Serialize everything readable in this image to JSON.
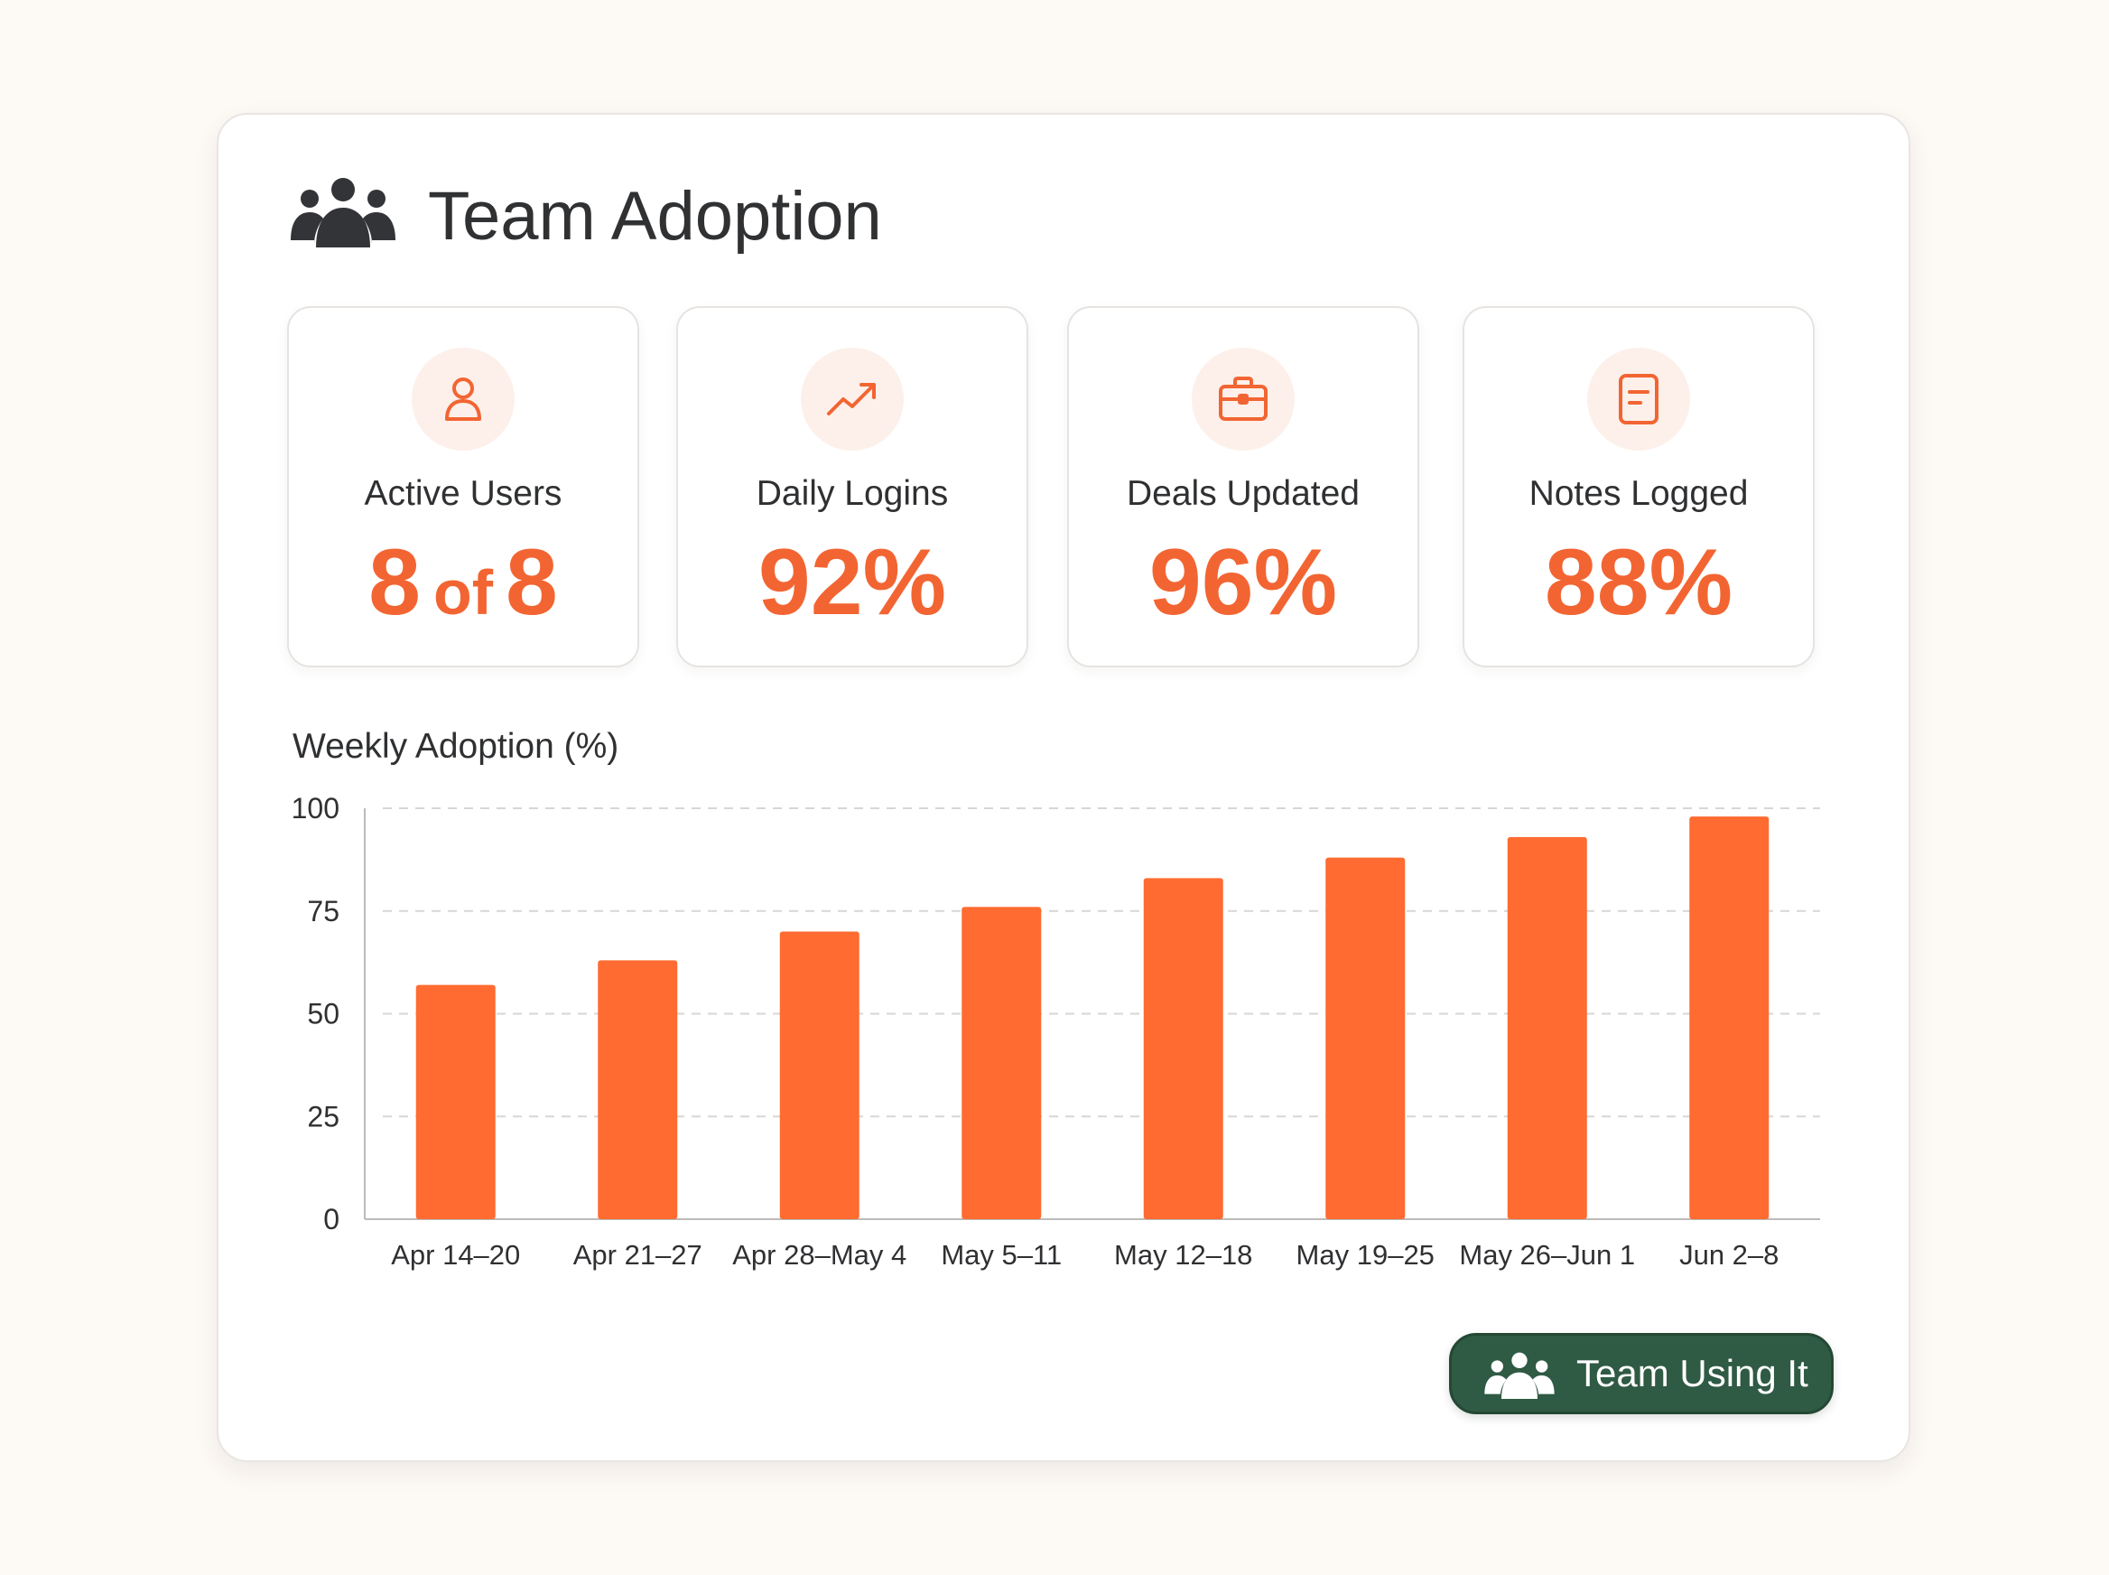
{
  "header": {
    "title": "Team Adoption",
    "icon": "team-icon"
  },
  "kpis": [
    {
      "label": "Active Users",
      "value_main": "8",
      "value_mid": "of",
      "value_end": "8",
      "icon": "user-icon"
    },
    {
      "label": "Daily Logins",
      "value": "92%",
      "icon": "trending-up-icon"
    },
    {
      "label": "Deals Updated",
      "value": "96%",
      "icon": "briefcase-icon"
    },
    {
      "label": "Notes Logged",
      "value": "88%",
      "icon": "document-icon"
    }
  ],
  "colors": {
    "accent": "#f26532",
    "bar": "#ff6b30",
    "button": "#2f5a44",
    "icon_bg": "#fdf0ea",
    "text": "#2f3032"
  },
  "chart_data": {
    "type": "bar",
    "title": "Weekly Adoption (%)",
    "categories": [
      "Apr 14–20",
      "Apr 21–27",
      "Apr 28–May 4",
      "May 5–11",
      "May 12–18",
      "May 19–25",
      "May 26–Jun 1",
      "Jun 2–8"
    ],
    "values": [
      57,
      63,
      70,
      76,
      83,
      88,
      93,
      98
    ],
    "ylim": [
      0,
      100
    ],
    "yticks": [
      0,
      25,
      50,
      75,
      100
    ],
    "grid": true,
    "legend": "none"
  },
  "button": {
    "label": "Team Using It",
    "icon": "team-icon"
  }
}
